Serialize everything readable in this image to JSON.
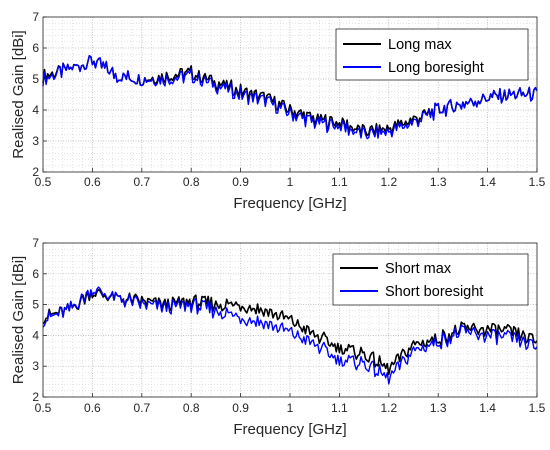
{
  "chart_data": [
    {
      "type": "line",
      "xlabel": "Frequency [GHz]",
      "ylabel": "Realised Gain [dBi]",
      "xlim": [
        0.5,
        1.5
      ],
      "ylim": [
        2,
        7
      ],
      "xticks": [
        "0.5",
        "0.6",
        "0.7",
        "0.8",
        "0.9",
        "1",
        "1.1",
        "1.2",
        "1.3",
        "1.4",
        "1.5"
      ],
      "yticks": [
        "2",
        "3",
        "4",
        "5",
        "6",
        "7"
      ],
      "grid": "major and minor, dotted",
      "legend_location": "top-right",
      "x": [
        0.5,
        0.55,
        0.6,
        0.65,
        0.7,
        0.75,
        0.8,
        0.85,
        0.9,
        0.95,
        1.0,
        1.05,
        1.1,
        1.15,
        1.2,
        1.25,
        1.3,
        1.35,
        1.4,
        1.45,
        1.5
      ],
      "series": [
        {
          "name": "Long max",
          "color": "#000000",
          "values": [
            5.1,
            5.3,
            5.6,
            5.1,
            5.0,
            5.1,
            5.2,
            4.9,
            4.6,
            4.4,
            4.0,
            3.7,
            3.6,
            3.3,
            3.4,
            3.7,
            4.0,
            4.2,
            4.4,
            4.5,
            4.5
          ]
        },
        {
          "name": "Long boresight",
          "color": "#0000ff",
          "values": [
            5.0,
            5.3,
            5.6,
            5.1,
            5.0,
            5.0,
            5.1,
            4.8,
            4.5,
            4.3,
            3.9,
            3.6,
            3.5,
            3.2,
            3.3,
            3.6,
            4.0,
            4.2,
            4.4,
            4.5,
            4.5
          ]
        }
      ]
    },
    {
      "type": "line",
      "xlabel": "Frequency [GHz]",
      "ylabel": "Realised Gain [dBi]",
      "xlim": [
        0.5,
        1.5
      ],
      "ylim": [
        2,
        7
      ],
      "xticks": [
        "0.5",
        "0.6",
        "0.7",
        "0.8",
        "0.9",
        "1",
        "1.1",
        "1.2",
        "1.3",
        "1.4",
        "1.5"
      ],
      "yticks": [
        "2",
        "3",
        "4",
        "5",
        "6",
        "7"
      ],
      "grid": "major and minor, dotted",
      "legend_location": "top-right",
      "x": [
        0.5,
        0.55,
        0.6,
        0.65,
        0.7,
        0.75,
        0.8,
        0.85,
        0.9,
        0.95,
        1.0,
        1.05,
        1.1,
        1.15,
        1.2,
        1.25,
        1.3,
        1.35,
        1.4,
        1.45,
        1.5
      ],
      "series": [
        {
          "name": "Short max",
          "color": "#000000",
          "values": [
            4.6,
            4.8,
            5.4,
            5.2,
            5.1,
            5.0,
            5.1,
            5.0,
            5.0,
            4.8,
            4.5,
            4.0,
            3.6,
            3.4,
            2.9,
            3.7,
            3.9,
            4.2,
            4.2,
            4.1,
            3.8
          ]
        },
        {
          "name": "Short boresight",
          "color": "#0000ff",
          "values": [
            4.5,
            4.8,
            5.5,
            5.2,
            5.0,
            4.9,
            5.0,
            4.8,
            4.6,
            4.4,
            4.1,
            3.7,
            3.2,
            3.1,
            2.6,
            3.5,
            3.8,
            4.1,
            4.0,
            3.9,
            3.6
          ]
        }
      ]
    }
  ]
}
